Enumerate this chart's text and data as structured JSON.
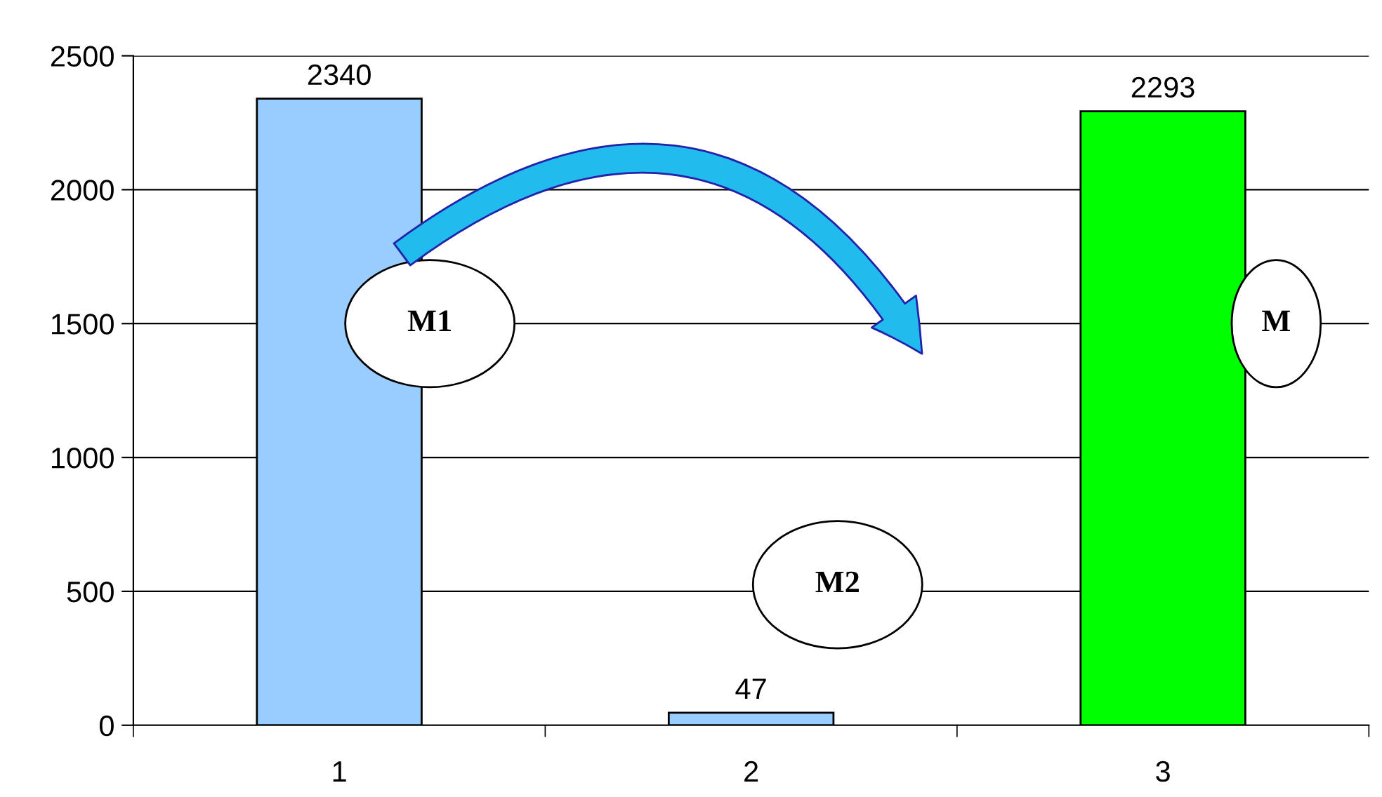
{
  "chart_data": {
    "type": "bar",
    "categories": [
      "1",
      "2",
      "3"
    ],
    "values": [
      2340,
      47,
      2293
    ],
    "colors": [
      "#99ccff",
      "#99ccff",
      "#00ff00"
    ],
    "ylim": [
      0,
      2500
    ],
    "yticks": [
      0,
      500,
      1000,
      1500,
      2000,
      2500
    ],
    "grid": "y",
    "data_labels": true,
    "annotations": [
      "M1",
      "M2",
      "M"
    ]
  }
}
